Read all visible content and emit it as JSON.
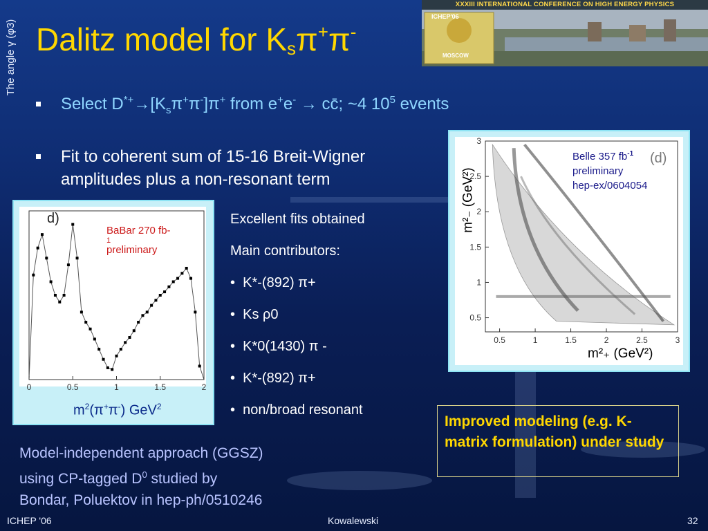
{
  "side_label": "The angle γ (φ3)",
  "title": {
    "main": "Dalitz model for K",
    "sub": "s",
    "pi1": "π",
    "sup1": "+",
    "pi2": "π",
    "sup2": "-"
  },
  "banner": {
    "text": "XXXIII INTERNATIONAL CONFERENCE ON HIGH ENERGY PHYSICS",
    "logo_top": "ICHEP'06",
    "logo_bottom": "MOSCOW"
  },
  "bullet1": {
    "a": "Select D",
    "a_sup": "*+",
    "arrow1": "→",
    "b": "[K",
    "b_sub": "s",
    "c": "π",
    "c_sup": "+",
    "d": "π",
    "d_sup": "-",
    "e": "]π",
    "e_sup": "+",
    "f": " from e",
    "f_sup": "+",
    "g": "e",
    "g_sup": "-",
    "h": " → cc̄;  ~4 10",
    "h_sup": "5",
    "i": " events"
  },
  "bullet2": "Fit to coherent sum of 15-16 Breit-Wigner amplitudes plus a non-resonant term",
  "babar": {
    "panel_tag": "d)",
    "label_line1": "BaBar 270 fb-",
    "label_line2": "1",
    "label_line3": "preliminary",
    "x_ticks": [
      "0",
      "0.5",
      "1",
      "1.5",
      "2"
    ],
    "xlabel_a": "m",
    "xlabel_sup1": "2",
    "xlabel_b": "(π",
    "xlabel_sup2": "+",
    "xlabel_c": "π",
    "xlabel_sup3": "-",
    "xlabel_d": ") GeV",
    "xlabel_sup4": "2"
  },
  "belle": {
    "panel_tag": "(d)",
    "label_line1": "Belle 357 fb",
    "label_sup": "-1",
    "label_line2": "preliminary",
    "label_line3": "hep-ex/0604054",
    "x_ticks": [
      "0.5",
      "1",
      "1.5",
      "2",
      "2.5",
      "3"
    ],
    "y_ticks": [
      "3",
      "2.5",
      "2",
      "1.5",
      "1",
      "0.5"
    ],
    "ylabel": "m²₋ (GeV²)",
    "xlabel": "m²₊ (GeV²)"
  },
  "mid": {
    "l1": "Excellent fits obtained",
    "l2": "Main contributors:",
    "items": [
      "K*-(892) π+",
      "Ks ρ0",
      "K*0(1430) π -",
      "K*-(892) π+",
      "non/broad resonant"
    ]
  },
  "bottom_left": {
    "l1": "Model-independent approach (GGSZ)",
    "l2a": "using CP-tagged D",
    "l2sup": "0",
    "l2b": " studied by",
    "l3": "Bondar, Poluektov in hep-ph/0510246"
  },
  "improved": "Improved modeling (e.g. K-matrix formulation) under study",
  "footer": {
    "left": "ICHEP '06",
    "middle": "Kowalewski",
    "right": "32"
  },
  "chart_data": {
    "type": "line",
    "title": "",
    "xlabel": "m²(π+π-) GeV²",
    "ylabel": "",
    "xlim": [
      0,
      2
    ],
    "series": [
      {
        "name": "",
        "x": [
          0.0,
          0.05,
          0.1,
          0.15,
          0.2,
          0.25,
          0.3,
          0.35,
          0.4,
          0.45,
          0.5,
          0.55,
          0.6,
          0.65,
          0.7,
          0.75,
          0.8,
          0.85,
          0.9,
          0.95,
          1.0,
          1.05,
          1.1,
          1.15,
          1.2,
          1.25,
          1.3,
          1.35,
          1.4,
          1.45,
          1.5,
          1.55,
          1.6,
          1.65,
          1.7,
          1.75,
          1.8,
          1.85,
          1.9,
          1.95,
          2.0
        ],
        "y": [
          0.0,
          0.62,
          0.78,
          0.86,
          0.72,
          0.58,
          0.5,
          0.46,
          0.5,
          0.68,
          0.92,
          0.72,
          0.4,
          0.34,
          0.3,
          0.24,
          0.18,
          0.12,
          0.07,
          0.06,
          0.14,
          0.18,
          0.22,
          0.25,
          0.29,
          0.34,
          0.38,
          0.4,
          0.44,
          0.47,
          0.5,
          0.52,
          0.55,
          0.58,
          0.6,
          0.63,
          0.66,
          0.6,
          0.4,
          0.08,
          0.0
        ]
      }
    ]
  }
}
